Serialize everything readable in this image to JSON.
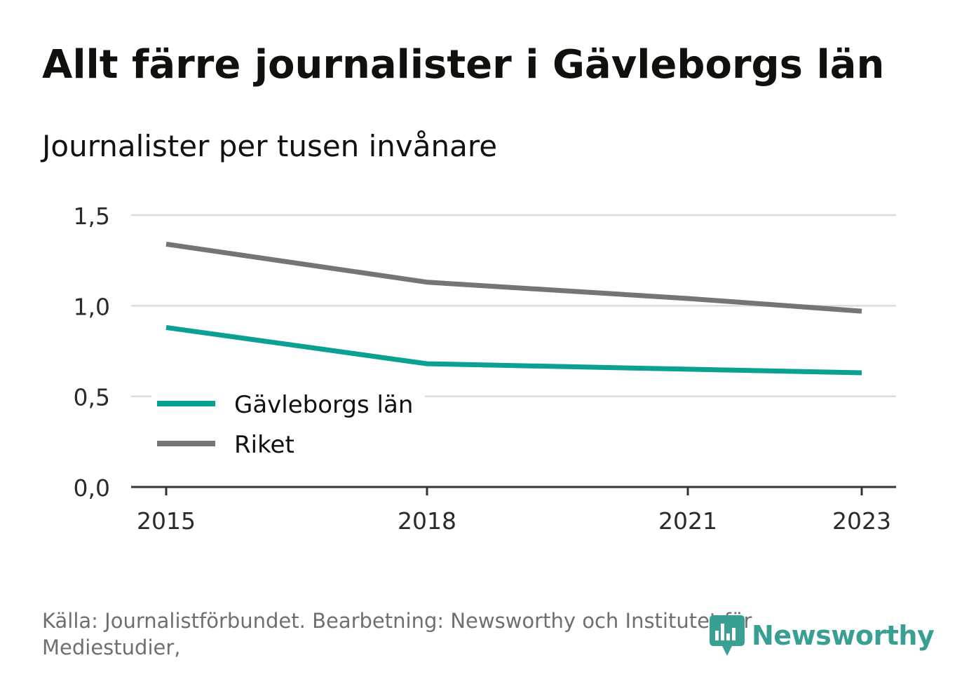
{
  "title": "Allt färre journalister i Gävleborgs län",
  "subtitle": "Journalister per tusen invånare",
  "source": "Källa: Journalistförbundet. Bearbetning: Newsworthy och Institutet för Mediestudier,",
  "logo": {
    "text": "Newsworthy",
    "icon": "newsworthy-logo-icon",
    "color": "#3a9f93"
  },
  "chart_data": {
    "type": "line",
    "title": "Allt färre journalister i Gävleborgs län",
    "subtitle": "Journalister per tusen invånare",
    "xlabel": "",
    "ylabel": "",
    "x": [
      2015,
      2018,
      2021,
      2023
    ],
    "xlim": [
      2014.6,
      2023.4
    ],
    "ylim": [
      0,
      1.5
    ],
    "y_ticks": [
      0,
      0.5,
      1.0,
      1.5
    ],
    "y_tick_labels": [
      "0,0",
      "0,5",
      "1,0",
      "1,5"
    ],
    "x_tick_labels": [
      "2015",
      "2018",
      "2021",
      "2023"
    ],
    "grid": true,
    "legend_position": "bottom-left",
    "series": [
      {
        "name": "Gävleborgs län",
        "color": "#0aa193",
        "values": [
          0.88,
          0.68,
          0.65,
          0.63
        ]
      },
      {
        "name": "Riket",
        "color": "#747479",
        "values": [
          1.34,
          1.13,
          1.04,
          0.97
        ]
      }
    ]
  }
}
